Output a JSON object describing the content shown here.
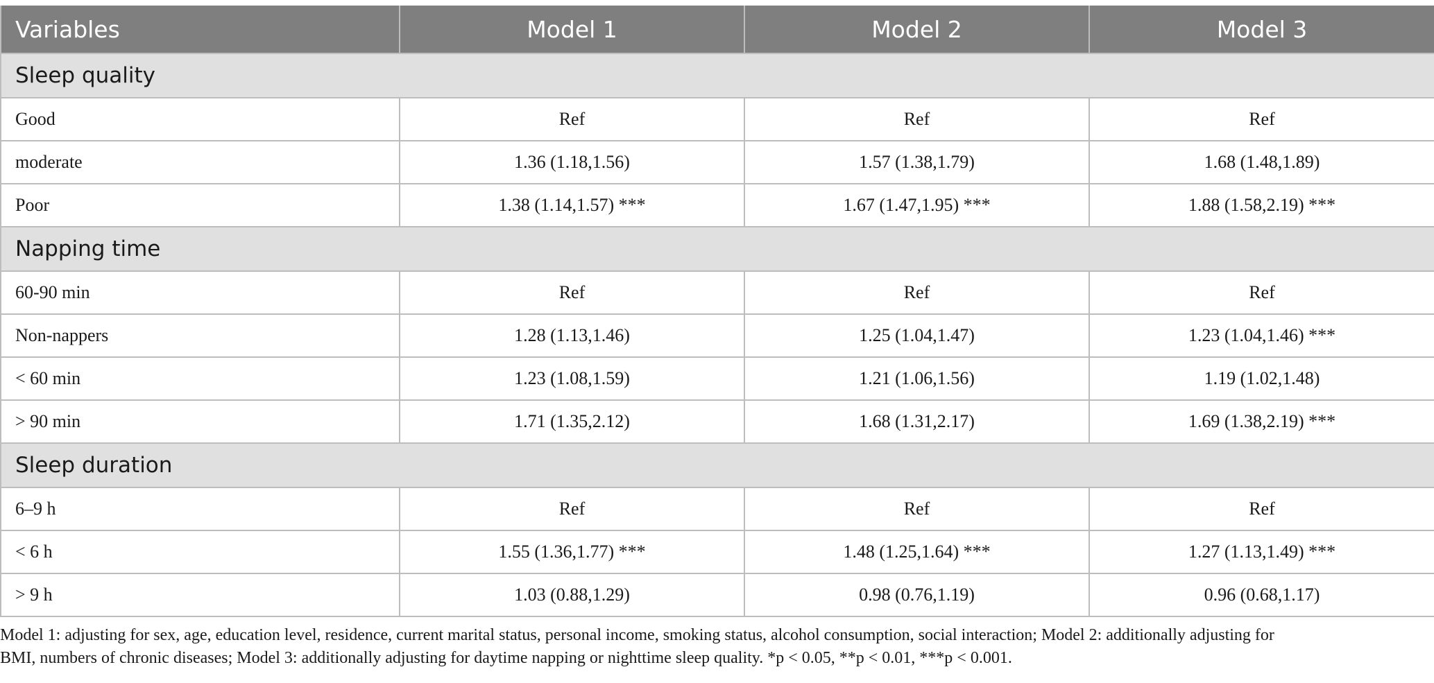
{
  "table": {
    "headers": [
      "Variables",
      "Model 1",
      "Model 2",
      "Model 3"
    ],
    "sections": [
      {
        "title": "Sleep quality",
        "rows": [
          {
            "label": "Good",
            "values": [
              "Ref",
              "Ref",
              "Ref"
            ]
          },
          {
            "label": "moderate",
            "values": [
              "1.36 (1.18,1.56)",
              "1.57 (1.38,1.79)",
              "1.68 (1.48,1.89)"
            ]
          },
          {
            "label": "Poor",
            "values": [
              "1.38 (1.14,1.57) ***",
              "1.67 (1.47,1.95) ***",
              "1.88 (1.58,2.19) ***"
            ]
          }
        ]
      },
      {
        "title": "Napping time",
        "rows": [
          {
            "label": "60-90 min",
            "values": [
              "Ref",
              "Ref",
              "Ref"
            ]
          },
          {
            "label": "Non-nappers",
            "values": [
              "1.28 (1.13,1.46)",
              "1.25 (1.04,1.47)",
              "1.23 (1.04,1.46) ***"
            ]
          },
          {
            "label": "< 60 min",
            "values": [
              "1.23 (1.08,1.59)",
              "1.21 (1.06,1.56)",
              "1.19 (1.02,1.48)"
            ]
          },
          {
            "label": "> 90 min",
            "values": [
              "1.71 (1.35,2.12)",
              "1.68 (1.31,2.17)",
              "1.69 (1.38,2.19) ***"
            ]
          }
        ]
      },
      {
        "title": "Sleep duration",
        "rows": [
          {
            "label": "6–9 h",
            "values": [
              "Ref",
              "Ref",
              "Ref"
            ]
          },
          {
            "label": "< 6 h",
            "values": [
              "1.55 (1.36,1.77) ***",
              "1.48 (1.25,1.64) ***",
              "1.27 (1.13,1.49) ***"
            ]
          },
          {
            "label": "> 9 h",
            "values": [
              "1.03 (0.88,1.29)",
              "0.98 (0.76,1.19)",
              "0.96 (0.68,1.17)"
            ]
          }
        ]
      }
    ]
  },
  "footnote": {
    "line1": "Model 1: adjusting for sex, age, education level, residence, current marital status, personal income, smoking status, alcohol consumption, social interaction; Model 2: additionally adjusting for",
    "line2": "BMI, numbers of chronic diseases; Model 3: additionally adjusting for daytime napping or nighttime sleep quality. *p < 0.05, **p < 0.01, ***p < 0.001."
  }
}
